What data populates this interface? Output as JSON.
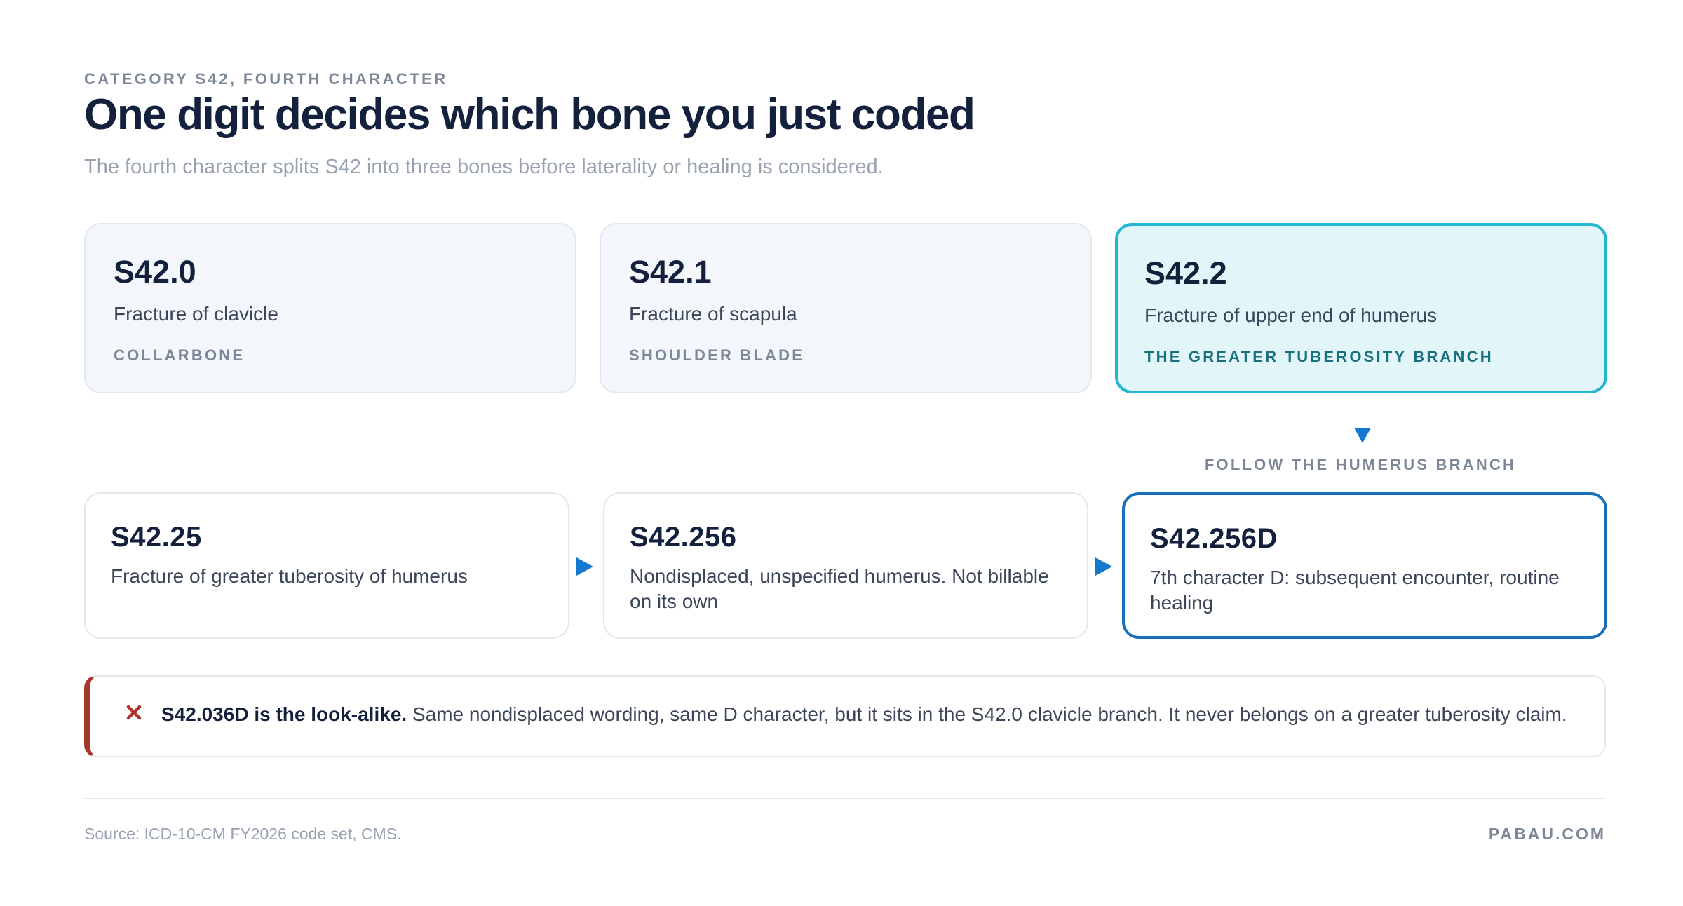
{
  "header": {
    "eyebrow": "CATEGORY S42, FOURTH CHARACTER",
    "title": "One digit decides which bone you just coded",
    "subtitle": "The fourth character splits S42 into three bones before laterality or healing is considered."
  },
  "top_cards": [
    {
      "code": "S42.0",
      "description": "Fracture of clavicle",
      "tag": "COLLARBONE"
    },
    {
      "code": "S42.1",
      "description": "Fracture of scapula",
      "tag": "SHOULDER BLADE"
    },
    {
      "code": "S42.2",
      "description": "Fracture of upper end of humerus",
      "tag": "THE GREATER TUBEROSITY BRANCH"
    }
  ],
  "follow_label": "FOLLOW THE HUMERUS BRANCH",
  "bottom_cards": [
    {
      "code": "S42.25",
      "description": "Fracture of greater tuberosity of humerus"
    },
    {
      "code": "S42.256",
      "description": "Nondisplaced, unspecified humerus. Not billable on its own"
    },
    {
      "code": "S42.256D",
      "description": "7th character D: subsequent encounter, routine healing"
    }
  ],
  "warning": {
    "icon": "close-x-icon",
    "bold": "S42.036D is the look-alike.",
    "text": " Same nondisplaced wording, same D character, but it sits in the S42.0 clavicle branch. It never belongs on a greater tuberosity claim."
  },
  "footer": {
    "source": "Source: ICD-10-CM FY2026 code set, CMS.",
    "brand": "PABAU.COM"
  },
  "colors": {
    "title": "#14213d",
    "highlight_fill": "#e2f6fa",
    "highlight_border": "#23b6d3",
    "final_border": "#1870ba",
    "arrow": "#1578cf",
    "warning_accent": "#a5392e"
  }
}
